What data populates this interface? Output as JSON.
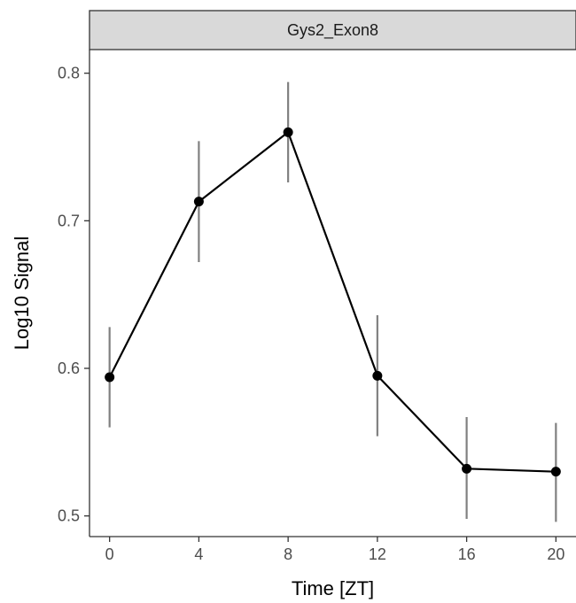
{
  "chart_data": {
    "type": "line",
    "facet_label": "Gys2_Exon8",
    "xlabel": "Time [ZT]",
    "ylabel": "Log10 Signal",
    "x": [
      0,
      4,
      8,
      12,
      16,
      20
    ],
    "series": [
      {
        "values": [
          0.594,
          0.713,
          0.76,
          0.595,
          0.532,
          0.53
        ],
        "error_low": [
          0.56,
          0.672,
          0.726,
          0.554,
          0.498,
          0.496
        ],
        "error_high": [
          0.628,
          0.754,
          0.794,
          0.636,
          0.567,
          0.563
        ]
      }
    ],
    "xticks": [
      "0",
      "4",
      "8",
      "12",
      "16",
      "20"
    ],
    "yticks": [
      "0.5",
      "0.6",
      "0.7",
      "0.8"
    ],
    "xlim": [
      -0.9,
      20.9
    ],
    "ylim": [
      0.486,
      0.816
    ],
    "grid": false,
    "legend": "none",
    "colors": {
      "line": "#000000",
      "points": "#000000",
      "error_bars": "#808080",
      "strip_fill": "#d9d9d9",
      "axis": "#333333"
    }
  }
}
